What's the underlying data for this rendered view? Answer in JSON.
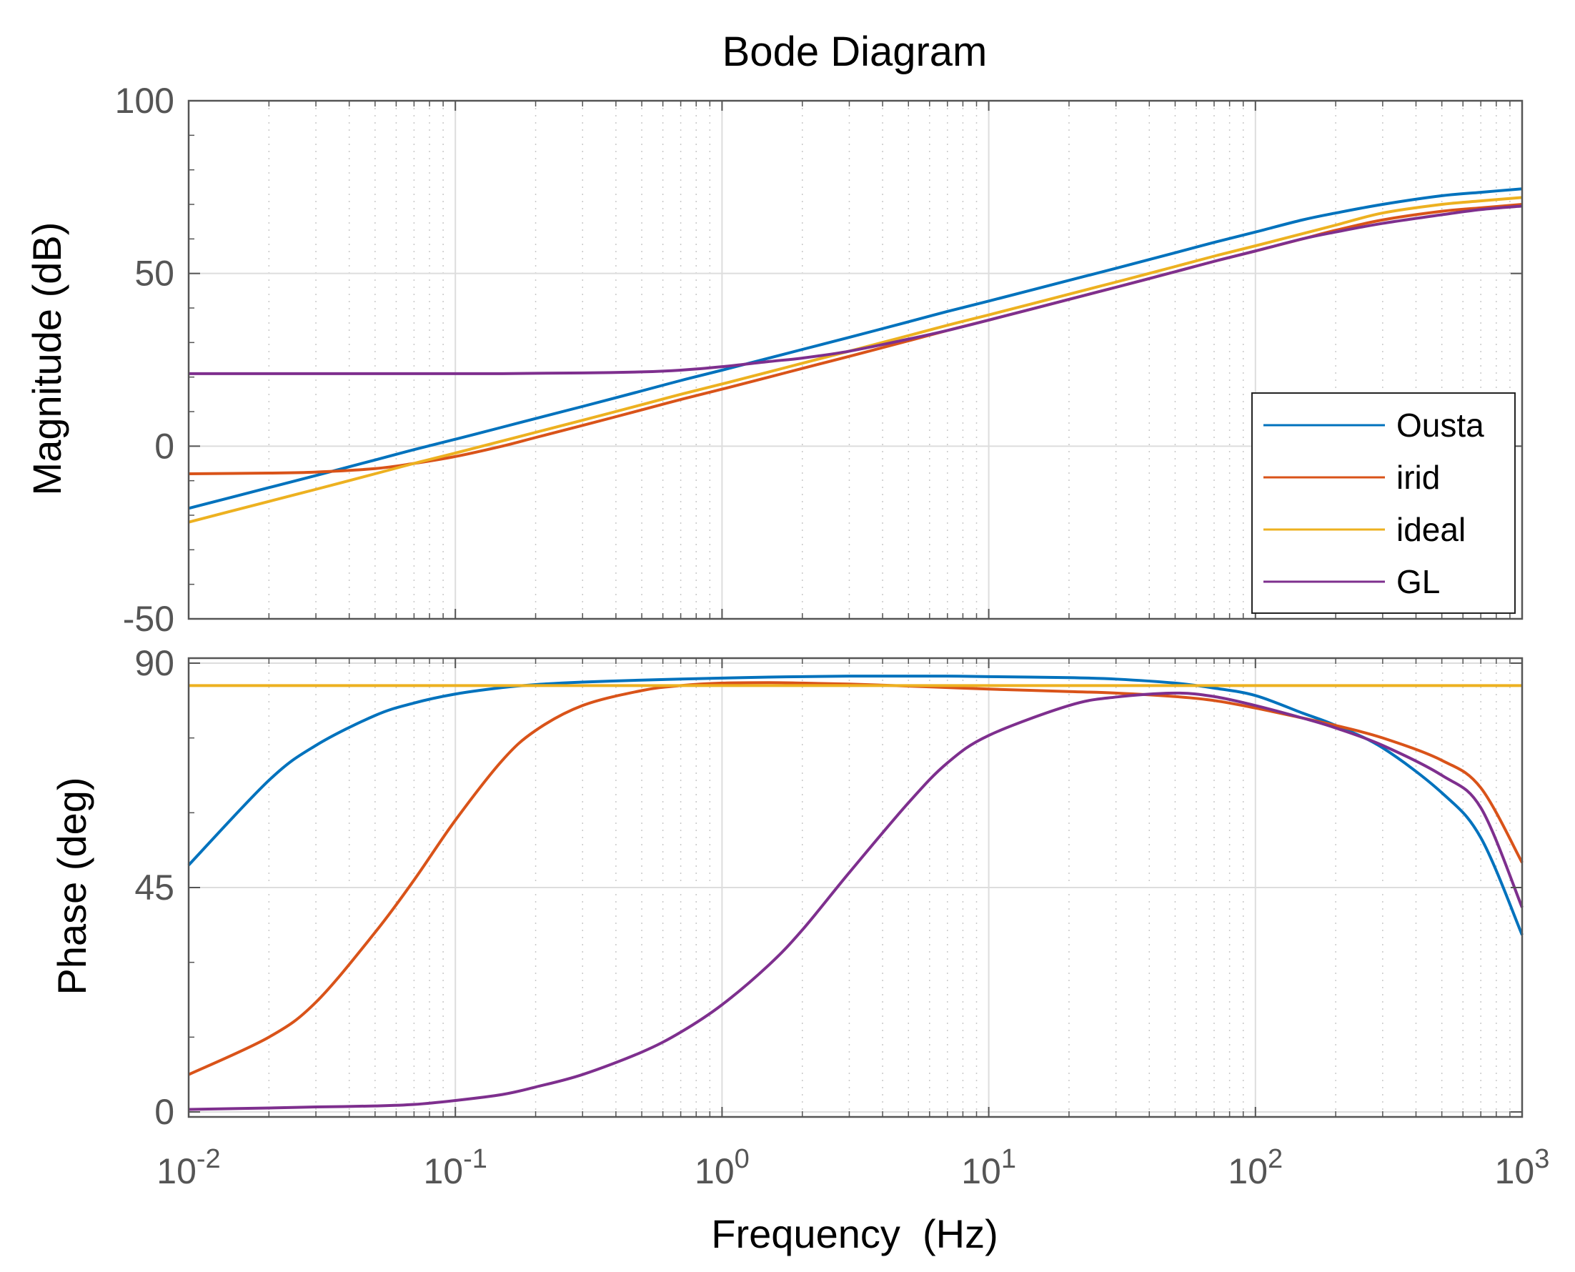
{
  "chart_data": {
    "type": "line",
    "title": "Bode Diagram",
    "xlabel": "Frequency  (Hz)",
    "xscale": "log",
    "xlim": [
      0.01,
      1000
    ],
    "x_ticks": [
      {
        "value": 0.01,
        "base": "10",
        "exp": "-2"
      },
      {
        "value": 0.1,
        "base": "10",
        "exp": "-1"
      },
      {
        "value": 1,
        "base": "10",
        "exp": "0"
      },
      {
        "value": 10,
        "base": "10",
        "exp": "1"
      },
      {
        "value": 100,
        "base": "10",
        "exp": "2"
      },
      {
        "value": 1000,
        "base": "10",
        "exp": "3"
      }
    ],
    "grid": true,
    "legend": {
      "location": "right",
      "entries": [
        "Ousta",
        "irid",
        "ideal",
        "GL"
      ]
    },
    "colors": {
      "Ousta": "#0072BD",
      "irid": "#D95319",
      "ideal": "#EDB120",
      "GL": "#7E2F8E",
      "grid": "#dddddd",
      "axis": "#555555"
    },
    "x": [
      0.01,
      0.02,
      0.03,
      0.05,
      0.07,
      0.1,
      0.15,
      0.2,
      0.3,
      0.5,
      0.7,
      1,
      1.5,
      2,
      3,
      5,
      7,
      10,
      20,
      30,
      50,
      70,
      100,
      150,
      200,
      300,
      500,
      700,
      1000
    ],
    "magnitude": {
      "ylabel": "Magnitude (dB)",
      "ylim": [
        -50,
        100
      ],
      "yticks": [
        100,
        50,
        0,
        -50
      ],
      "series": [
        {
          "name": "Ousta",
          "values": [
            -18,
            -12,
            -8.5,
            -4,
            -1,
            2,
            5.5,
            8,
            11.5,
            16,
            19,
            22,
            25.5,
            28,
            31.5,
            36,
            39,
            42,
            48,
            51.5,
            56,
            59,
            62,
            65.5,
            67.5,
            70,
            72.5,
            73.5,
            74.5
          ]
        },
        {
          "name": "irid",
          "values": [
            -8,
            -7.8,
            -7.5,
            -6.5,
            -5,
            -3,
            0,
            2.5,
            6,
            10.5,
            13.5,
            16.5,
            20,
            22.5,
            26,
            30.5,
            33.5,
            36.5,
            42.5,
            46,
            50.5,
            53.5,
            56.5,
            60,
            62.5,
            65.5,
            68,
            69,
            70
          ]
        },
        {
          "name": "ideal",
          "values": [
            -22,
            -16,
            -12.5,
            -8,
            -5,
            -2,
            1.5,
            4,
            7.5,
            12,
            15,
            18,
            21.5,
            24,
            27.5,
            32,
            35,
            38,
            44,
            47.5,
            52,
            55,
            58,
            61.5,
            64,
            67.5,
            70,
            71,
            72
          ]
        },
        {
          "name": "GL",
          "values": [
            21,
            21,
            21,
            21,
            21,
            21,
            21,
            21.1,
            21.2,
            21.5,
            22,
            23,
            24.5,
            25.5,
            27.5,
            31,
            33.5,
            36.5,
            42.5,
            46,
            50.5,
            53.5,
            56.5,
            60,
            62,
            64.5,
            67,
            68.5,
            69.5
          ]
        }
      ]
    },
    "phase": {
      "ylabel": "Phase (deg)",
      "ylim": [
        -1,
        91
      ],
      "yticks": [
        90,
        45,
        0
      ],
      "series": [
        {
          "name": "Ousta",
          "values": [
            49.5,
            66.5,
            73.5,
            79.5,
            82,
            83.8,
            85.1,
            85.7,
            86.2,
            86.6,
            86.8,
            87,
            87.2,
            87.3,
            87.4,
            87.4,
            87.4,
            87.3,
            87.1,
            86.8,
            86,
            85,
            83.5,
            80,
            77.5,
            73,
            64,
            55,
            35.5
          ]
        },
        {
          "name": "irid",
          "values": [
            7.5,
            15,
            22,
            36,
            46.5,
            58.5,
            70.5,
            76.5,
            81.5,
            84.5,
            85.5,
            86,
            86.1,
            86,
            85.8,
            85.4,
            85.1,
            84.8,
            84.3,
            84,
            83.3,
            82.5,
            81,
            79,
            77.5,
            75,
            70.5,
            65,
            50
          ]
        },
        {
          "name": "ideal",
          "values": [
            85.5,
            85.5,
            85.5,
            85.5,
            85.5,
            85.5,
            85.5,
            85.5,
            85.5,
            85.5,
            85.5,
            85.5,
            85.5,
            85.5,
            85.5,
            85.5,
            85.5,
            85.5,
            85.5,
            85.5,
            85.5,
            85.5,
            85.5,
            85.5,
            85.5,
            85.5,
            85.5,
            85.5,
            85.5
          ]
        },
        {
          "name": "GL",
          "values": [
            0.5,
            0.8,
            1,
            1.2,
            1.5,
            2.3,
            3.5,
            5,
            7.5,
            12,
            16,
            21.5,
            29.5,
            36.5,
            48,
            62,
            70,
            75.5,
            81.5,
            83.2,
            84,
            83.3,
            81.5,
            79,
            77,
            73.5,
            67.5,
            61,
            41
          ]
        }
      ]
    }
  }
}
